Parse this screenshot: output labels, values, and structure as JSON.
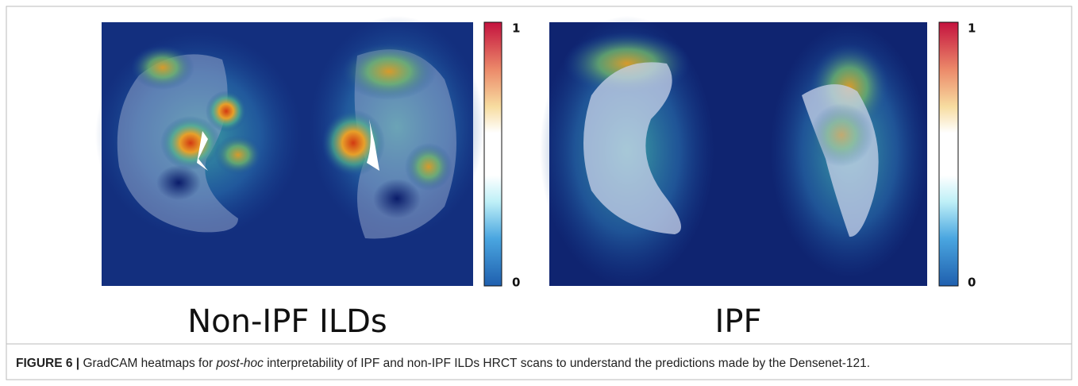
{
  "figure": {
    "panels": [
      {
        "label": "Non-IPF ILDs",
        "colorbar": {
          "max": 1,
          "min": 0
        }
      },
      {
        "label": "IPF",
        "colorbar": {
          "max": 1,
          "min": 0
        }
      }
    ],
    "caption": {
      "label": "FIGURE 6 |",
      "text_before": " GradCAM heatmaps for ",
      "emphasis": "post-hoc",
      "text_after": " interpretability of IPF and non-IPF ILDs HRCT scans to understand the predictions made by the Densenet-121."
    }
  }
}
